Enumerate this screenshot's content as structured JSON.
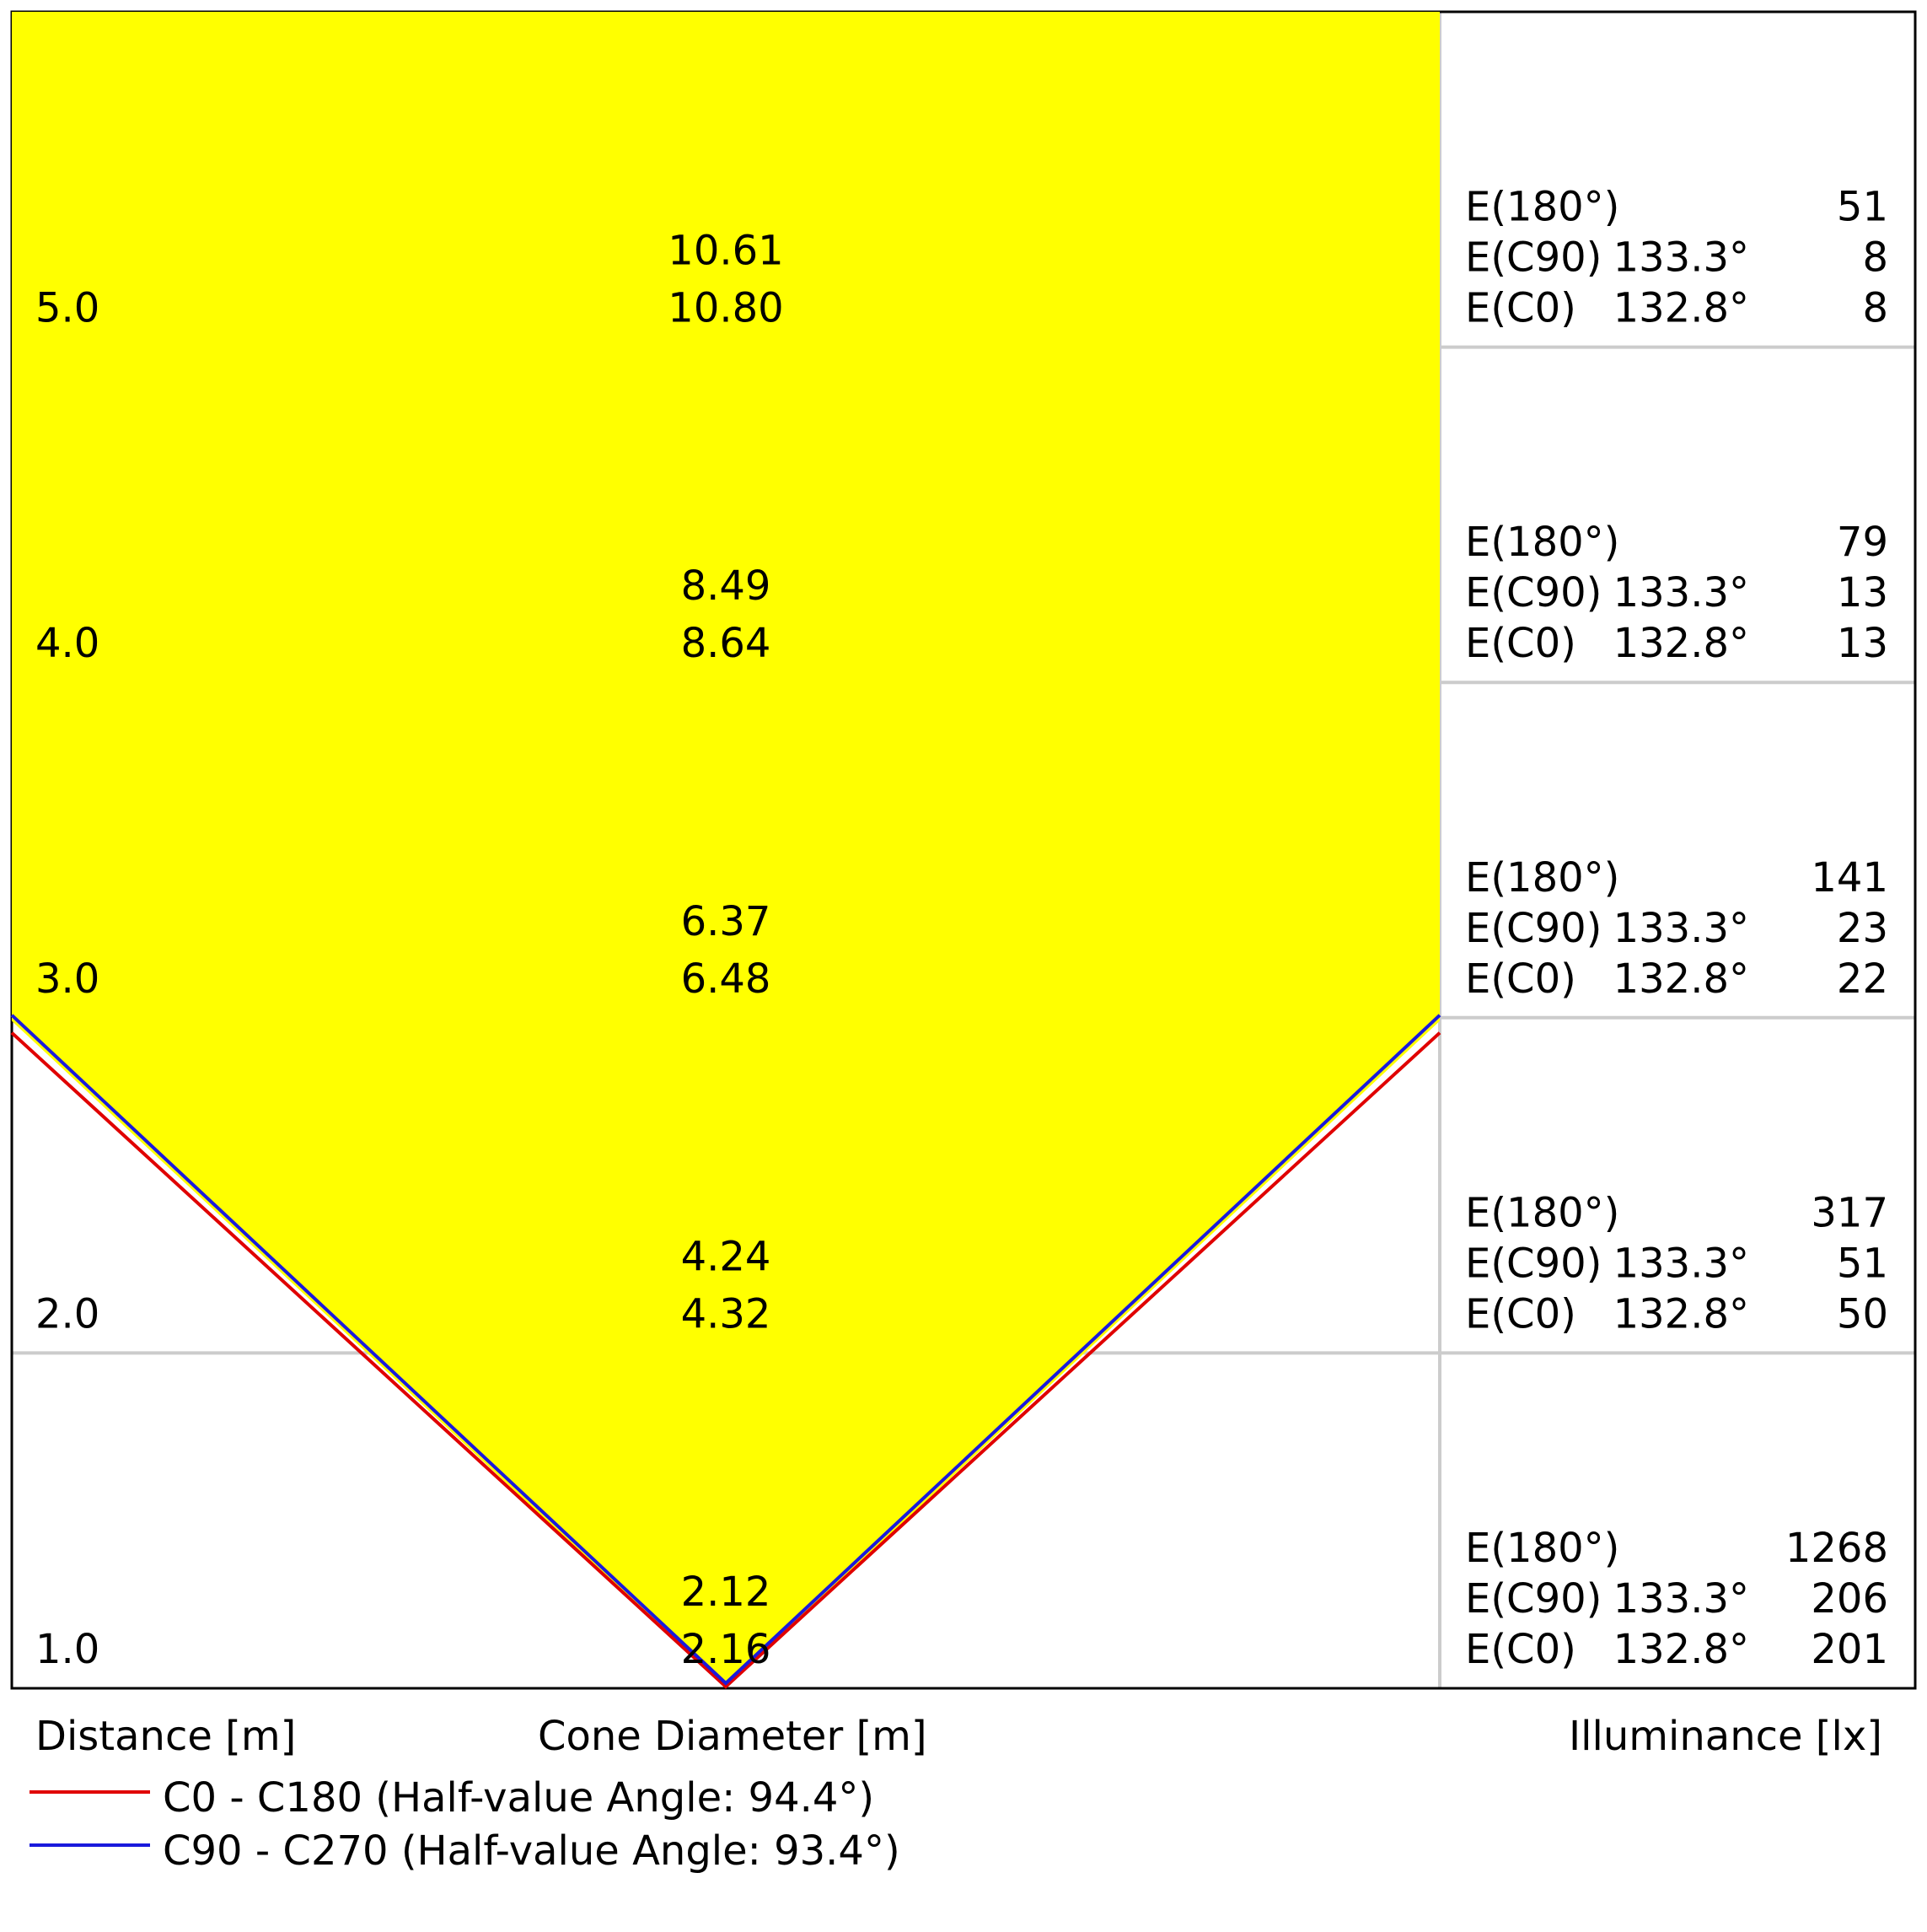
{
  "chart_data": {
    "type": "area",
    "xlabel": "Cone Diameter [m]",
    "ylabel": "Distance [m]",
    "table_label": "Illuminance [lx]",
    "colors": {
      "cone_fill": "#ffff00",
      "c0_line": "#e00000",
      "c90_line": "#1a1adc",
      "grid": "#cccccc",
      "frame": "#000000"
    },
    "rows": [
      {
        "distance": "5.0",
        "cone_c90": "10.61",
        "cone_c0": "10.80",
        "e_center": {
          "label": "E(180°)",
          "value": "51"
        },
        "e_c90": {
          "label": "E(C90)",
          "angle": "133.3°",
          "value": "8"
        },
        "e_c0": {
          "label": "E(C0)",
          "angle": "132.8°",
          "value": "8"
        }
      },
      {
        "distance": "4.0",
        "cone_c90": "8.49",
        "cone_c0": "8.64",
        "e_center": {
          "label": "E(180°)",
          "value": "79"
        },
        "e_c90": {
          "label": "E(C90)",
          "angle": "133.3°",
          "value": "13"
        },
        "e_c0": {
          "label": "E(C0)",
          "angle": "132.8°",
          "value": "13"
        }
      },
      {
        "distance": "3.0",
        "cone_c90": "6.37",
        "cone_c0": "6.48",
        "e_center": {
          "label": "E(180°)",
          "value": "141"
        },
        "e_c90": {
          "label": "E(C90)",
          "angle": "133.3°",
          "value": "23"
        },
        "e_c0": {
          "label": "E(C0)",
          "angle": "132.8°",
          "value": "22"
        }
      },
      {
        "distance": "2.0",
        "cone_c90": "4.24",
        "cone_c0": "4.32",
        "e_center": {
          "label": "E(180°)",
          "value": "317"
        },
        "e_c90": {
          "label": "E(C90)",
          "angle": "133.3°",
          "value": "51"
        },
        "e_c0": {
          "label": "E(C0)",
          "angle": "132.8°",
          "value": "50"
        }
      },
      {
        "distance": "1.0",
        "cone_c90": "2.12",
        "cone_c0": "2.16",
        "e_center": {
          "label": "E(180°)",
          "value": "1268"
        },
        "e_c90": {
          "label": "E(C90)",
          "angle": "133.3°",
          "value": "206"
        },
        "e_c0": {
          "label": "E(C0)",
          "angle": "132.8°",
          "value": "201"
        }
      }
    ],
    "series": [
      {
        "name": "C0 - C180 (Half-value Angle: 94.4°)",
        "half_angle_deg": 94.4,
        "color": "#e00000"
      },
      {
        "name": "C90 - C270 (Half-value Angle: 93.4°)",
        "half_angle_deg": 93.4,
        "color": "#1a1adc"
      }
    ]
  }
}
